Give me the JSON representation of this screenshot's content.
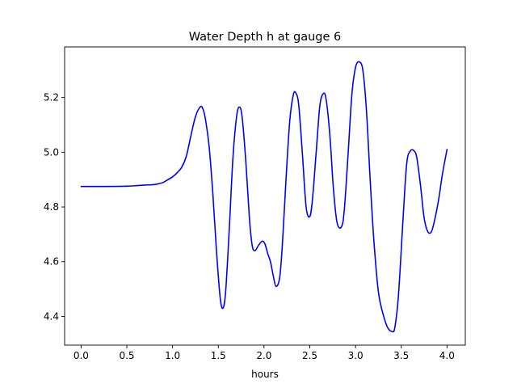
{
  "chart_data": {
    "type": "line",
    "title": "Water Depth h at gauge 6",
    "xlabel": "hours",
    "ylabel": "",
    "xlim": [
      -0.18,
      4.2
    ],
    "ylim": [
      4.295,
      5.385
    ],
    "xticks": [
      0.0,
      0.5,
      1.0,
      1.5,
      2.0,
      2.5,
      3.0,
      3.5,
      4.0
    ],
    "xtick_labels": [
      "0.0",
      "0.5",
      "1.0",
      "1.5",
      "2.0",
      "2.5",
      "3.0",
      "3.5",
      "4.0"
    ],
    "yticks": [
      4.4,
      4.6,
      4.8,
      5.0,
      5.2
    ],
    "ytick_labels": [
      "4.4",
      "4.6",
      "4.8",
      "5.0",
      "5.2"
    ],
    "grid": false,
    "series": [
      {
        "color": "#0000ff",
        "x": [
          0.0,
          0.25,
          0.5,
          0.6,
          0.7,
          0.8,
          0.85,
          0.9,
          0.95,
          1.0,
          1.05,
          1.1,
          1.15,
          1.2,
          1.25,
          1.3,
          1.33,
          1.36,
          1.4,
          1.44,
          1.48,
          1.52,
          1.55,
          1.58,
          1.62,
          1.66,
          1.7,
          1.73,
          1.76,
          1.8,
          1.84,
          1.87,
          1.9,
          1.94,
          1.98,
          2.01,
          2.04,
          2.07,
          2.1,
          2.13,
          2.17,
          2.2,
          2.24,
          2.28,
          2.32,
          2.35,
          2.38,
          2.42,
          2.46,
          2.5,
          2.53,
          2.57,
          2.61,
          2.65,
          2.68,
          2.72,
          2.76,
          2.8,
          2.85,
          2.88,
          2.92,
          2.96,
          3.0,
          3.04,
          3.08,
          3.12,
          3.16,
          3.2,
          3.25,
          3.3,
          3.35,
          3.4,
          3.43,
          3.47,
          3.52,
          3.56,
          3.6,
          3.64,
          3.67,
          3.71,
          3.75,
          3.79,
          3.83,
          3.87,
          3.91,
          3.95,
          4.0
        ],
        "y": [
          4.875,
          4.875,
          4.876,
          4.878,
          4.88,
          4.882,
          4.885,
          4.89,
          4.9,
          4.91,
          4.925,
          4.945,
          4.985,
          5.06,
          5.13,
          5.165,
          5.16,
          5.12,
          5.02,
          4.85,
          4.64,
          4.47,
          4.43,
          4.49,
          4.72,
          4.98,
          5.13,
          5.165,
          5.13,
          4.97,
          4.76,
          4.66,
          4.64,
          4.66,
          4.675,
          4.665,
          4.63,
          4.6,
          4.55,
          4.51,
          4.54,
          4.66,
          4.9,
          5.11,
          5.21,
          5.215,
          5.17,
          4.99,
          4.8,
          4.765,
          4.83,
          5.0,
          5.17,
          5.215,
          5.19,
          5.06,
          4.86,
          4.74,
          4.73,
          4.8,
          5.0,
          5.21,
          5.31,
          5.33,
          5.3,
          5.15,
          4.9,
          4.68,
          4.49,
          4.41,
          4.36,
          4.345,
          4.36,
          4.48,
          4.76,
          4.96,
          5.005,
          5.005,
          4.98,
          4.88,
          4.76,
          4.71,
          4.71,
          4.76,
          4.83,
          4.92,
          5.01
        ]
      }
    ]
  }
}
